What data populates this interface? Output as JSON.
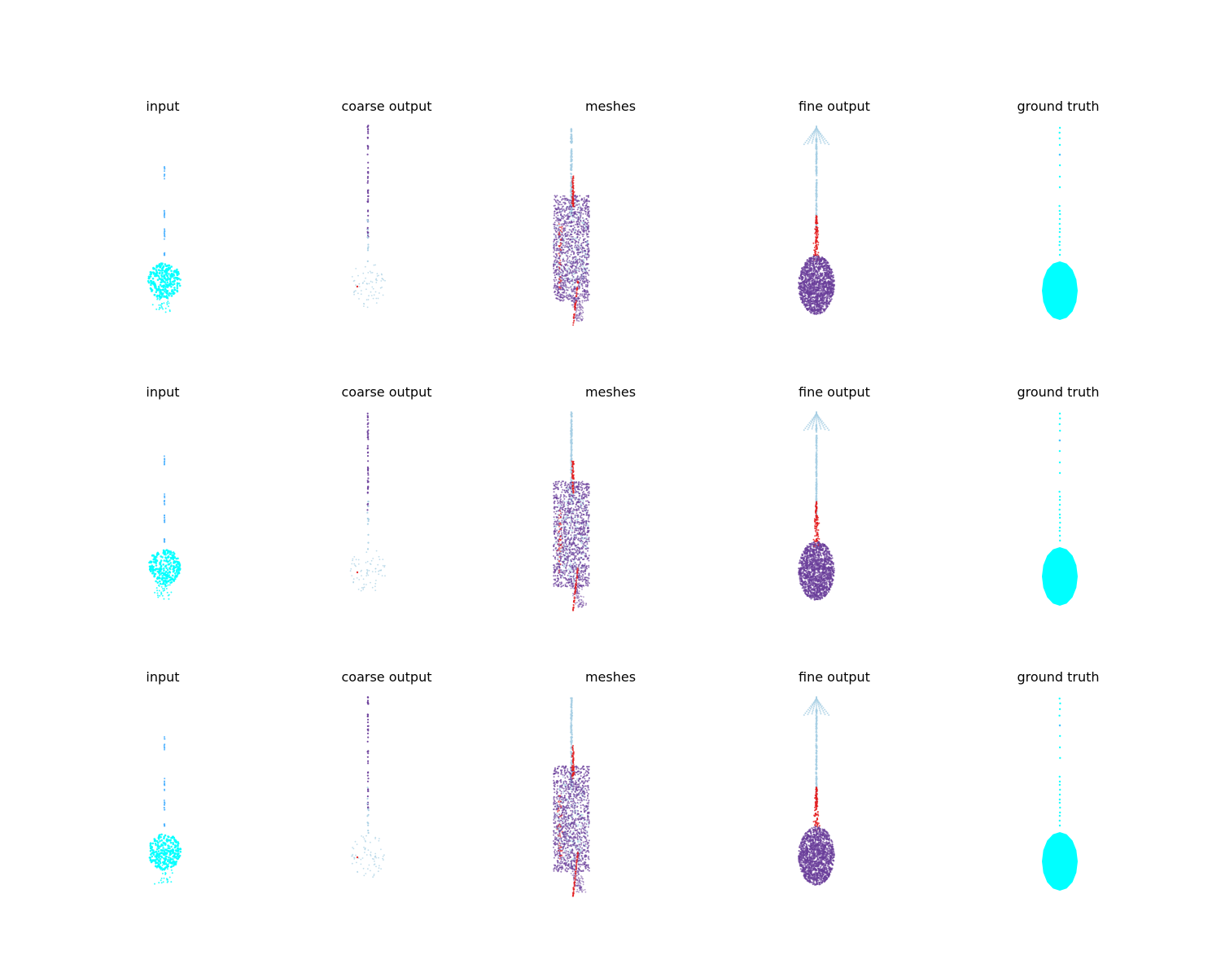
{
  "figure": {
    "panel_titles": [
      "input",
      "coarse output",
      "meshes",
      "fine output",
      "ground truth"
    ]
  },
  "colors": {
    "input_cyan": "#00ffff",
    "input_blue": "#4fb3ff",
    "light_blue": "#a6cee3",
    "purple": "#6a3d9a",
    "red": "#e31a1c"
  },
  "chart_data": {
    "type": "scatter",
    "layout": "3 rows x 5 columns of 3D point-cloud panels, axes hidden",
    "rows": [
      {
        "panels": [
          {
            "title": "input",
            "kind": "input",
            "series": [
              "cyan head cloud",
              "blue stem dots"
            ]
          },
          {
            "title": "coarse output",
            "kind": "coarse",
            "series": [
              "purple stem points",
              "light-blue sparse head"
            ]
          },
          {
            "title": "meshes",
            "kind": "meshes",
            "series": [
              "light-blue stem",
              "purple dense body",
              "red streaks"
            ]
          },
          {
            "title": "fine output",
            "kind": "fine",
            "series": [
              "light-blue fan + stem",
              "red neck",
              "purple oval body"
            ]
          },
          {
            "title": "ground truth",
            "kind": "gt",
            "series": [
              "cyan stem dots",
              "cyan solid oval"
            ]
          }
        ]
      },
      {
        "panels": [
          {
            "title": "input",
            "kind": "input"
          },
          {
            "title": "coarse output",
            "kind": "coarse"
          },
          {
            "title": "meshes",
            "kind": "meshes"
          },
          {
            "title": "fine output",
            "kind": "fine"
          },
          {
            "title": "ground truth",
            "kind": "gt"
          }
        ]
      },
      {
        "panels": [
          {
            "title": "input",
            "kind": "input"
          },
          {
            "title": "coarse output",
            "kind": "coarse"
          },
          {
            "title": "meshes",
            "kind": "meshes"
          },
          {
            "title": "fine output",
            "kind": "fine"
          },
          {
            "title": "ground truth",
            "kind": "gt"
          }
        ]
      }
    ],
    "axes_visible": false,
    "grid": false,
    "legend": "none"
  }
}
